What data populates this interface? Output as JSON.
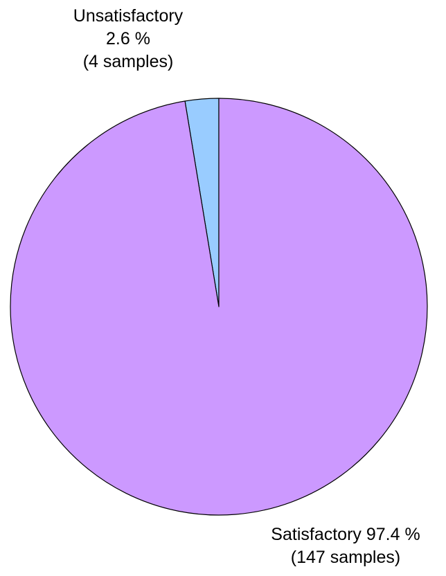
{
  "chart_data": {
    "type": "pie",
    "slices": [
      {
        "name": "Unsatisfactory",
        "percent": 2.6,
        "samples": 4,
        "color": "#99ccff",
        "label_lines": [
          "Unsatisfactory",
          "2.6 %",
          "(4 samples)"
        ]
      },
      {
        "name": "Satisfactory",
        "percent": 97.4,
        "samples": 147,
        "color": "#cc99ff",
        "label_lines": [
          "Satisfactory 97.4 %",
          "(147 samples)"
        ]
      }
    ],
    "start_angle": "top, counter-clockwise for first slice",
    "legend": "none"
  }
}
